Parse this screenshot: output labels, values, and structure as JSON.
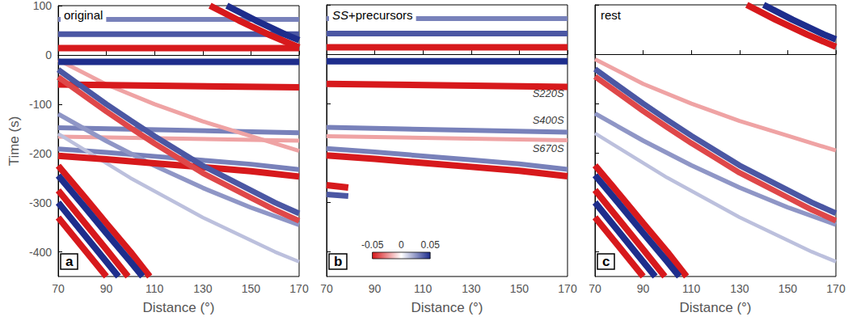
{
  "chart_data": [
    {
      "type": "line",
      "panel": "a",
      "title": "original",
      "xlabel": "Distance (°)",
      "ylabel": "Time (s)",
      "xlim": [
        70,
        170
      ],
      "ylim": [
        -450,
        100
      ],
      "xticks": [
        70,
        90,
        110,
        130,
        150,
        170
      ],
      "yticks": [
        -400,
        -300,
        -200,
        -100,
        0,
        100
      ],
      "grid": false,
      "series": [
        {
          "amplitude": 0.03,
          "x": [
            70,
            170
          ],
          "values": [
            72,
            72
          ]
        },
        {
          "amplitude": 0.04,
          "x": [
            70,
            170
          ],
          "values": [
            42,
            42
          ]
        },
        {
          "amplitude": -0.05,
          "x": [
            70,
            170
          ],
          "values": [
            14,
            14
          ]
        },
        {
          "amplitude": 0.05,
          "x": [
            70,
            170
          ],
          "values": [
            -14,
            -14
          ]
        },
        {
          "amplitude": -0.05,
          "x": [
            70,
            170
          ],
          "values": [
            -60,
            -66
          ]
        },
        {
          "amplitude": 0.03,
          "x": [
            70,
            170
          ],
          "values": [
            -148,
            -158
          ]
        },
        {
          "amplitude": -0.02,
          "x": [
            70,
            170
          ],
          "values": [
            -166,
            -174
          ]
        },
        {
          "amplitude": 0.03,
          "x": [
            70,
            90,
            110,
            130,
            150,
            170
          ],
          "values": [
            -191,
            -198,
            -206,
            -214,
            -222,
            -233
          ]
        },
        {
          "amplitude": -0.05,
          "x": [
            70,
            90,
            110,
            130,
            150,
            170
          ],
          "values": [
            -205,
            -212,
            -220,
            -228,
            -236,
            -247
          ]
        },
        {
          "amplitude": -0.02,
          "x": [
            70,
            90,
            110,
            130,
            150,
            170
          ],
          "values": [
            -10,
            -60,
            -100,
            -135,
            -165,
            -195
          ]
        },
        {
          "amplitude": 0.025,
          "x": [
            70,
            90,
            110,
            130,
            150,
            170
          ],
          "values": [
            -120,
            -175,
            -225,
            -270,
            -310,
            -345
          ]
        },
        {
          "amplitude": 0.015,
          "x": [
            70,
            100,
            130,
            160,
            170
          ],
          "values": [
            -160,
            -250,
            -330,
            -400,
            -420
          ]
        },
        {
          "amplitude": 0.04,
          "x": [
            70,
            80,
            90,
            100,
            110,
            120,
            130,
            140,
            150,
            160,
            170
          ],
          "values": [
            -30,
            -65,
            -100,
            -133,
            -165,
            -195,
            -225,
            -250,
            -275,
            -300,
            -322
          ]
        },
        {
          "amplitude": -0.04,
          "x": [
            70,
            80,
            90,
            100,
            110,
            120,
            130,
            140,
            150,
            160,
            170
          ],
          "values": [
            -45,
            -80,
            -115,
            -148,
            -180,
            -210,
            -240,
            -265,
            -290,
            -315,
            -337
          ]
        },
        {
          "amplitude": -0.05,
          "x": [
            70,
            80,
            90,
            100,
            108
          ],
          "values": [
            -225,
            -283,
            -342,
            -400,
            -450
          ]
        },
        {
          "amplitude": 0.05,
          "x": [
            70,
            80,
            90,
            100,
            105
          ],
          "values": [
            -245,
            -303,
            -362,
            -420,
            -450
          ]
        },
        {
          "amplitude": -0.05,
          "x": [
            70,
            80,
            90,
            99
          ],
          "values": [
            -275,
            -335,
            -395,
            -450
          ]
        },
        {
          "amplitude": 0.05,
          "x": [
            70,
            80,
            90,
            95
          ],
          "values": [
            -300,
            -360,
            -420,
            -450
          ]
        },
        {
          "amplitude": -0.05,
          "x": [
            70,
            80,
            90
          ],
          "values": [
            -330,
            -390,
            -450
          ]
        },
        {
          "amplitude": -0.05,
          "x": [
            133,
            145,
            158,
            170
          ],
          "values": [
            100,
            70,
            40,
            15
          ]
        },
        {
          "amplitude": 0.05,
          "x": [
            140,
            152,
            165,
            170
          ],
          "values": [
            100,
            70,
            40,
            30
          ]
        }
      ]
    },
    {
      "type": "line",
      "panel": "b",
      "title": "SS+precursors",
      "xlabel": "Distance (°)",
      "xlim": [
        70,
        170
      ],
      "ylim": [
        -450,
        100
      ],
      "xticks": [
        70,
        90,
        110,
        130,
        150,
        170
      ],
      "yticks": [
        -400,
        -300,
        -200,
        -100,
        0,
        100
      ],
      "grid": false,
      "tick_labels": "x",
      "colorbar": {
        "range": [
          -0.05,
          0.05
        ],
        "ticks": [
          -0.05,
          0,
          0.05
        ]
      },
      "annotations": [
        {
          "text": "S220S",
          "x": 162,
          "y": -80
        },
        {
          "text": "S400S",
          "x": 162,
          "y": -133
        },
        {
          "text": "S670S",
          "x": 162,
          "y": -190
        }
      ],
      "series": [
        {
          "amplitude": 0.03,
          "x": [
            70,
            170
          ],
          "values": [
            72,
            72
          ]
        },
        {
          "amplitude": 0.04,
          "x": [
            70,
            170
          ],
          "values": [
            42,
            42
          ]
        },
        {
          "amplitude": -0.05,
          "x": [
            70,
            170
          ],
          "values": [
            14,
            14
          ]
        },
        {
          "amplitude": 0.05,
          "x": [
            70,
            170
          ],
          "values": [
            -14,
            -14
          ]
        },
        {
          "amplitude": -0.05,
          "x": [
            70,
            170
          ],
          "values": [
            -60,
            -66
          ]
        },
        {
          "amplitude": 0.03,
          "x": [
            70,
            170
          ],
          "values": [
            -148,
            -158
          ]
        },
        {
          "amplitude": -0.02,
          "x": [
            70,
            170
          ],
          "values": [
            -166,
            -174
          ]
        },
        {
          "amplitude": 0.03,
          "x": [
            70,
            90,
            110,
            130,
            150,
            170
          ],
          "values": [
            -191,
            -198,
            -206,
            -214,
            -222,
            -233
          ]
        },
        {
          "amplitude": -0.05,
          "x": [
            70,
            90,
            110,
            130,
            150,
            170
          ],
          "values": [
            -205,
            -212,
            -220,
            -228,
            -236,
            -247
          ]
        },
        {
          "amplitude": -0.05,
          "x": [
            70,
            79
          ],
          "values": [
            -265,
            -270
          ]
        },
        {
          "amplitude": 0.04,
          "x": [
            70,
            79
          ],
          "values": [
            -284,
            -287
          ]
        }
      ]
    },
    {
      "type": "line",
      "panel": "c",
      "title": "rest",
      "xlabel": "Distance (°)",
      "xlim": [
        70,
        170
      ],
      "ylim": [
        -450,
        100
      ],
      "xticks": [
        70,
        90,
        110,
        130,
        150,
        170
      ],
      "yticks": [
        -400,
        -300,
        -200,
        -100,
        0,
        100
      ],
      "grid": false,
      "tick_labels": "x",
      "series": [
        {
          "amplitude": -0.02,
          "x": [
            70,
            90,
            110,
            130,
            150,
            170
          ],
          "values": [
            -10,
            -60,
            -100,
            -135,
            -165,
            -195
          ]
        },
        {
          "amplitude": 0.025,
          "x": [
            70,
            90,
            110,
            130,
            150,
            170
          ],
          "values": [
            -120,
            -175,
            -225,
            -270,
            -310,
            -345
          ]
        },
        {
          "amplitude": 0.015,
          "x": [
            70,
            100,
            130,
            160,
            170
          ],
          "values": [
            -160,
            -250,
            -330,
            -400,
            -420
          ]
        },
        {
          "amplitude": 0.04,
          "x": [
            70,
            80,
            90,
            100,
            110,
            120,
            130,
            140,
            150,
            160,
            170
          ],
          "values": [
            -30,
            -65,
            -100,
            -133,
            -165,
            -195,
            -225,
            -250,
            -275,
            -300,
            -322
          ]
        },
        {
          "amplitude": -0.04,
          "x": [
            70,
            80,
            90,
            100,
            110,
            120,
            130,
            140,
            150,
            160,
            170
          ],
          "values": [
            -45,
            -80,
            -115,
            -148,
            -180,
            -210,
            -240,
            -265,
            -290,
            -315,
            -337
          ]
        },
        {
          "amplitude": -0.05,
          "x": [
            70,
            80,
            90,
            100,
            108
          ],
          "values": [
            -225,
            -283,
            -342,
            -400,
            -450
          ]
        },
        {
          "amplitude": 0.05,
          "x": [
            70,
            80,
            90,
            100,
            105
          ],
          "values": [
            -245,
            -303,
            -362,
            -420,
            -450
          ]
        },
        {
          "amplitude": -0.05,
          "x": [
            70,
            80,
            90,
            99
          ],
          "values": [
            -275,
            -335,
            -395,
            -450
          ]
        },
        {
          "amplitude": 0.05,
          "x": [
            70,
            80,
            90,
            95
          ],
          "values": [
            -300,
            -360,
            -420,
            -450
          ]
        },
        {
          "amplitude": -0.05,
          "x": [
            70,
            80,
            90
          ],
          "values": [
            -330,
            -390,
            -450
          ]
        },
        {
          "amplitude": -0.05,
          "x": [
            133,
            145,
            158,
            170
          ],
          "values": [
            100,
            70,
            40,
            15
          ]
        },
        {
          "amplitude": 0.05,
          "x": [
            140,
            152,
            165,
            170
          ],
          "values": [
            100,
            70,
            40,
            30
          ]
        }
      ]
    }
  ]
}
